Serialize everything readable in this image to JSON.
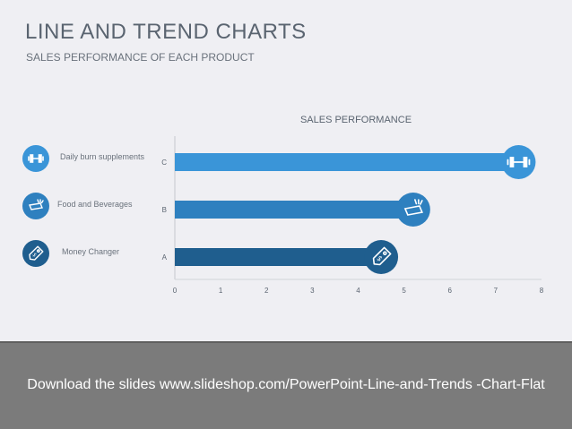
{
  "slide": {
    "title": "LINE AND TREND CHARTS",
    "subtitle": "SALES PERFORMANCE OF EACH PRODUCT"
  },
  "legend": {
    "items": [
      {
        "label": "Daily burn supplements",
        "icon": "dumbbell-icon",
        "color": "#3a95d8"
      },
      {
        "label": "Food and Beverages",
        "icon": "food-box-icon",
        "color": "#2e80bf"
      },
      {
        "label": "Money Changer",
        "icon": "price-tag-icon",
        "color": "#1f5e8e"
      }
    ]
  },
  "chart_data": {
    "type": "bar",
    "orientation": "horizontal",
    "title": "SALES PERFORMANCE",
    "categories": [
      "A",
      "B",
      "C"
    ],
    "values": [
      4.5,
      5.2,
      7.5
    ],
    "bar_colors": [
      "#1f5e8e",
      "#2e80bf",
      "#3a95d8"
    ],
    "icons": [
      "price-tag-icon",
      "food-box-icon",
      "dumbbell-icon"
    ],
    "xlim": [
      0,
      8
    ],
    "xticks": [
      0,
      1,
      2,
      3,
      4,
      5,
      6,
      7,
      8
    ],
    "xlabel": "",
    "ylabel": "",
    "grid": false
  },
  "footer": {
    "text": "Download the slides www.slideshop.com/PowerPoint-Line-and-Trends -Chart-Flat",
    "background": "#7b7b7b"
  }
}
